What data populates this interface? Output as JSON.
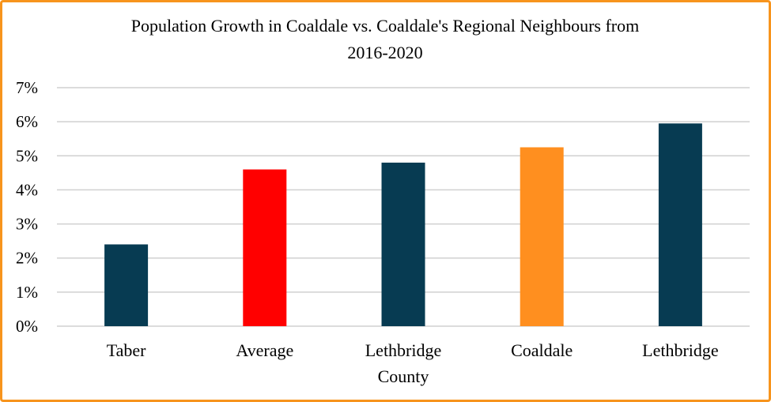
{
  "chart_data": {
    "type": "bar",
    "title": "Population Growth in Coaldale vs. Coaldale's Regional Neighbours from 2016-2020",
    "title_lines": [
      "Population Growth in Coaldale vs. Coaldale's Regional Neighbours from",
      "2016-2020"
    ],
    "categories": [
      "Taber",
      "Average",
      "Lethbridge County",
      "Coaldale",
      "Lethbridge"
    ],
    "category_lines": [
      [
        "Taber"
      ],
      [
        "Average"
      ],
      [
        "Lethbridge",
        "County"
      ],
      [
        "Coaldale"
      ],
      [
        "Lethbridge"
      ]
    ],
    "values": [
      2.4,
      4.6,
      4.8,
      5.25,
      5.95
    ],
    "value_unit": "%",
    "bar_colors": [
      "#073b52",
      "#ff0000",
      "#073b52",
      "#ff8f1f",
      "#073b52"
    ],
    "ylim": [
      0,
      7
    ],
    "yticks": [
      "0%",
      "1%",
      "2%",
      "3%",
      "4%",
      "5%",
      "6%",
      "7%"
    ],
    "xlabel": "",
    "ylabel": "",
    "grid": true,
    "legend": "none",
    "border_color": "#f7941d"
  }
}
